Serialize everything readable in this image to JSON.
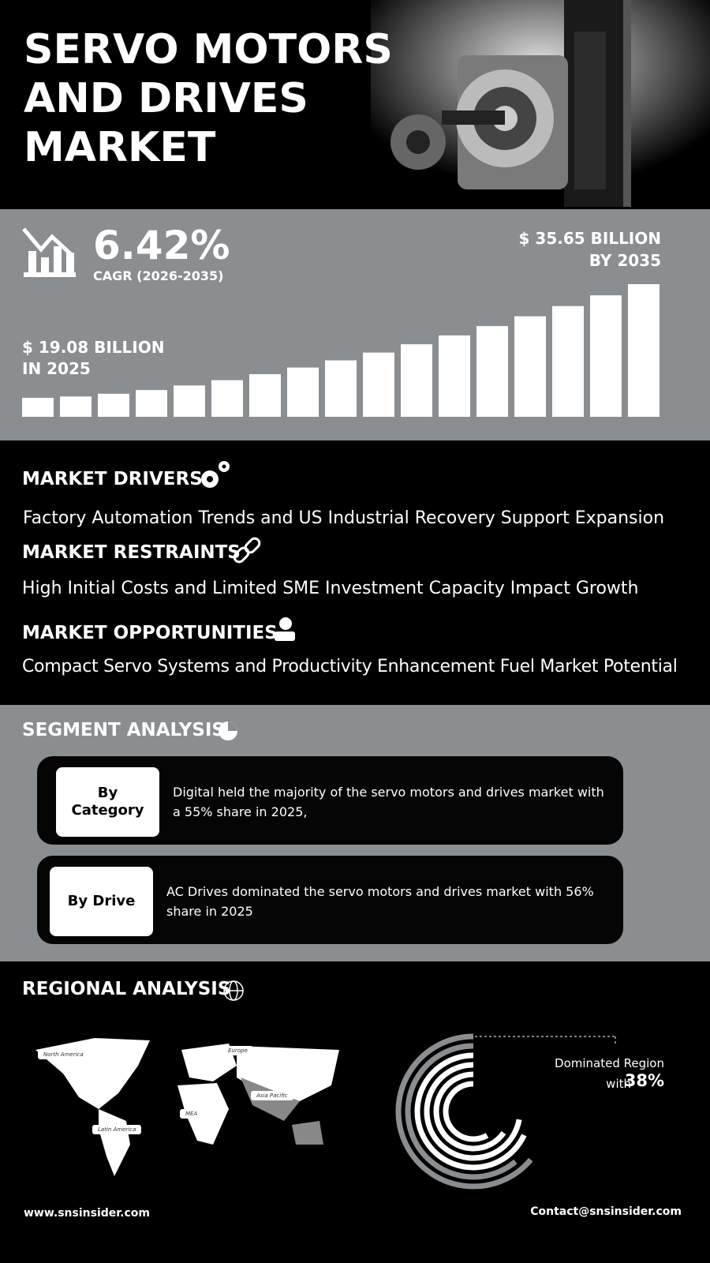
{
  "header": {
    "title": "SERVO MOTORS AND DRIVES MARKET"
  },
  "stats": {
    "cagr": "6.42%",
    "cagr_label": "CAGR (2026-2035)",
    "start_value": "$ 19.08 BILLION",
    "start_year": "IN 2025",
    "end_value": "$ 35.65 BILLION",
    "end_year": "BY 2035"
  },
  "insights": [
    {
      "title": "MARKET DRIVERS",
      "text": "Factory Automation Trends and US Industrial Recovery Support Expansion"
    },
    {
      "title": "MARKET RESTRAINTS",
      "text": "High Initial Costs and Limited SME Investment Capacity Impact Growth"
    },
    {
      "title": "MARKET OPPORTUNITIES",
      "text": "Compact Servo Systems and Productivity Enhancement Fuel Market Potential"
    }
  ],
  "segment": {
    "title": "SEGMENT ANALYSIS",
    "cards": [
      {
        "label": "By Category",
        "text": "Digital held the majority of the servo motors and drives market with a 55% share in 2025,"
      },
      {
        "label": "By Drive",
        "text": "AC Drives dominated the servo motors and drives market with 56% share in 2025"
      }
    ]
  },
  "regional": {
    "title": "REGIONAL ANALYSIS",
    "map_labels": [
      "North America",
      "Europe",
      "Asia Pacific",
      "MEA",
      "Latin America"
    ],
    "dominated_label": "Dominated Region",
    "with_label": "with",
    "share": "38%"
  },
  "footer": {
    "website": "www.snsinsider.com",
    "contact": "Contact@snsinsider.com"
  }
}
